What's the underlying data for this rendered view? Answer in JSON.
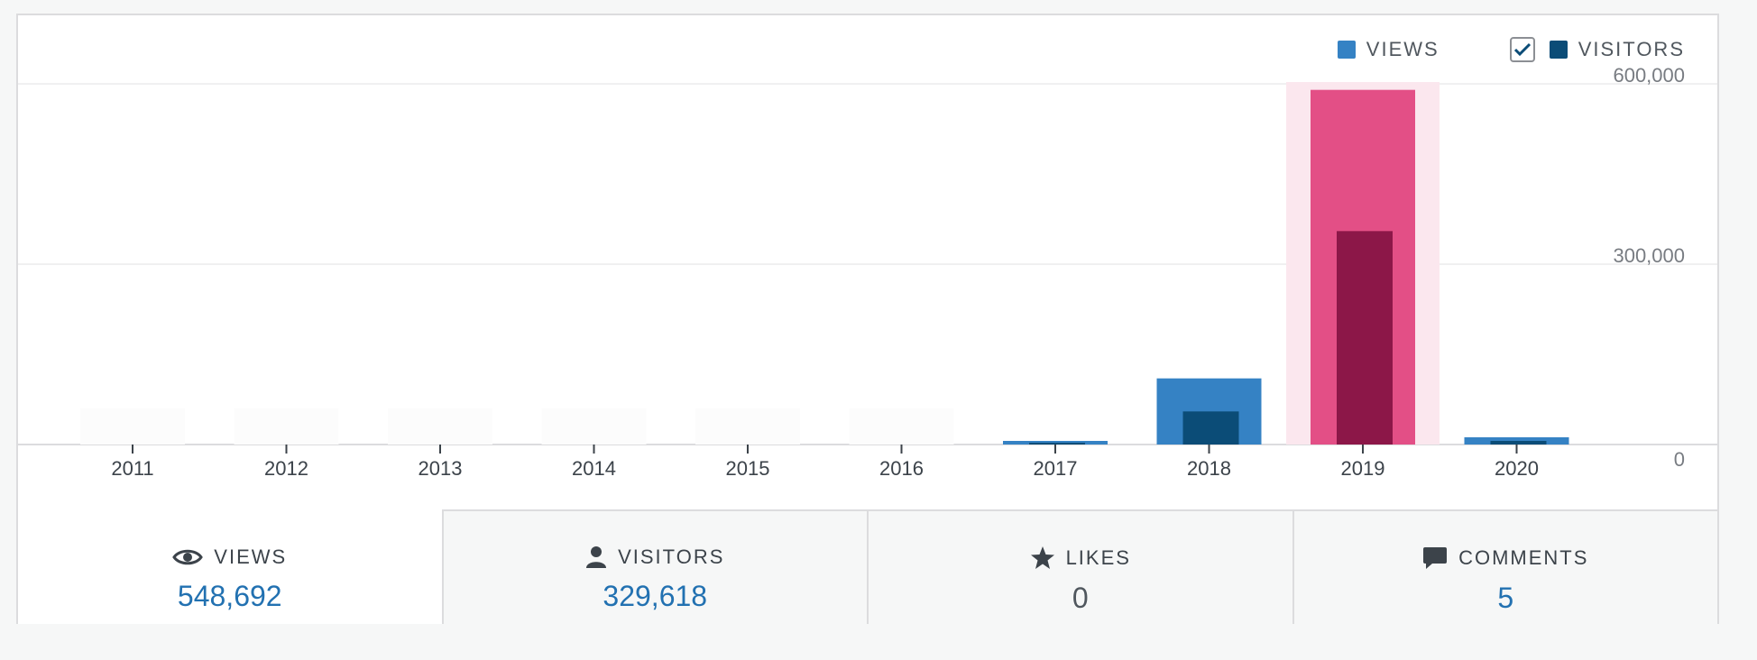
{
  "legend": {
    "views_label": "VIEWS",
    "visitors_label": "VISITORS",
    "visitors_checked": true
  },
  "colors": {
    "views": "#3582c4",
    "visitors": "#0b4c77",
    "highlight_views": "#e34f86",
    "highlight_visitors": "#8c1748",
    "highlight_band": "#fbe7ee",
    "link": "#2271b1"
  },
  "chart_data": {
    "type": "bar",
    "categories": [
      "2011",
      "2012",
      "2013",
      "2014",
      "2015",
      "2016",
      "2017",
      "2018",
      "2019",
      "2020"
    ],
    "series": [
      {
        "name": "VIEWS",
        "values": [
          0,
          0,
          0,
          0,
          0,
          0,
          6000,
          110000,
          590000,
          12000
        ]
      },
      {
        "name": "VISITORS",
        "values": [
          0,
          0,
          0,
          0,
          0,
          0,
          3000,
          55000,
          355000,
          6000
        ]
      }
    ],
    "highlighted_category": "2019",
    "ylim": [
      0,
      600000
    ],
    "y_ticks": [
      {
        "value": 0,
        "label": "0"
      },
      {
        "value": 300000,
        "label": "300,000"
      },
      {
        "value": 600000,
        "label": "600,000"
      }
    ],
    "xlabel": "",
    "ylabel": "",
    "legend_position": "top-right",
    "grid": true
  },
  "tabs": [
    {
      "label": "VIEWS",
      "value": "548,692",
      "icon": "eye-icon",
      "active": true
    },
    {
      "label": "VISITORS",
      "value": "329,618",
      "icon": "person-icon",
      "active": false
    },
    {
      "label": "LIKES",
      "value": "0",
      "icon": "star-icon",
      "active": false
    },
    {
      "label": "COMMENTS",
      "value": "5",
      "icon": "comment-icon",
      "active": false
    }
  ]
}
